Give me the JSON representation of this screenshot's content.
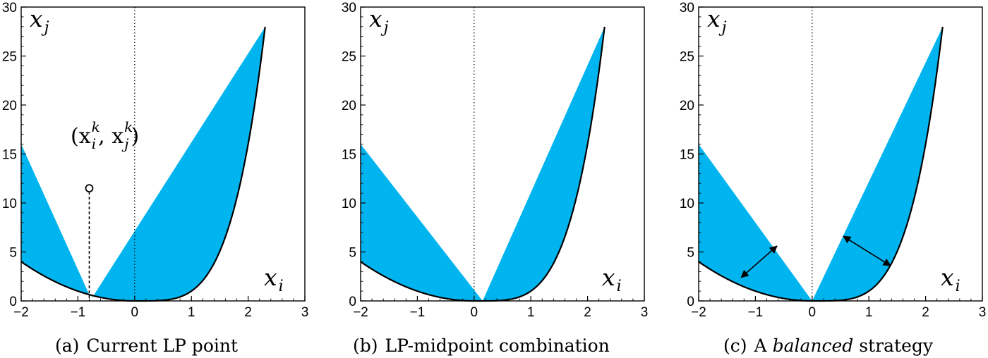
{
  "fill_color": "#00b4ef",
  "chart_data": [
    {
      "type": "area",
      "caption": {
        "label": "(a)",
        "text": "Current LP point",
        "emphasis": "",
        "rest": ""
      },
      "xlabel": {
        "base": "x",
        "sub": "i"
      },
      "ylabel": {
        "base": "x",
        "sub": "j"
      },
      "xlim": [
        -2,
        3
      ],
      "ylim": [
        0,
        30
      ],
      "xticks": [
        -2,
        -1,
        0,
        1,
        2,
        3
      ],
      "yticks": [
        0,
        5,
        10,
        15,
        20,
        25,
        30
      ],
      "curve": "y = x^2 for x < 0; y = x^4 for x >= 0",
      "curve_range": [
        -2,
        2.3
      ],
      "regions": [
        {
          "from": [
            -2,
            16
          ],
          "to": [
            -0.8,
            0.64
          ]
        },
        {
          "from": [
            -0.75,
            0.3164
          ],
          "to": [
            2.3,
            27.98
          ]
        }
      ],
      "point": {
        "x": -0.8,
        "y": 11.5,
        "label_base": "(x",
        "label_sup1": "k",
        "label_sub1": "i",
        "label_sep": ", x",
        "label_sup2": "k",
        "label_sub2": "j",
        "label_close": ")"
      },
      "zero_line": true
    },
    {
      "type": "area",
      "caption": {
        "label": "(b)",
        "text": "LP-midpoint combination",
        "emphasis": "",
        "rest": ""
      },
      "xlabel": {
        "base": "x",
        "sub": "i"
      },
      "ylabel": {
        "base": "x",
        "sub": "j"
      },
      "xlim": [
        -2,
        3
      ],
      "ylim": [
        0,
        30
      ],
      "xticks": [
        -2,
        -1,
        0,
        1,
        2,
        3
      ],
      "yticks": [
        0,
        5,
        10,
        15,
        20,
        25,
        30
      ],
      "curve": "y = x^2 for x < 0; y = x^4 for x >= 0",
      "curve_range": [
        -2,
        2.3
      ],
      "regions": [
        {
          "from": [
            -2,
            16
          ],
          "to": [
            0.15,
            0.0005
          ]
        },
        {
          "from": [
            0.15,
            0.0005
          ],
          "to": [
            2.3,
            27.98
          ]
        }
      ],
      "zero_line": true
    },
    {
      "type": "area",
      "caption": {
        "label": "(c)",
        "text": "A",
        "emphasis": "balanced",
        "rest": "strategy"
      },
      "xlabel": {
        "base": "x",
        "sub": "i"
      },
      "ylabel": {
        "base": "x",
        "sub": "j"
      },
      "xlim": [
        -2,
        3
      ],
      "ylim": [
        0,
        30
      ],
      "xticks": [
        -2,
        -1,
        0,
        1,
        2,
        3
      ],
      "yticks": [
        0,
        5,
        10,
        15,
        20,
        25,
        30
      ],
      "curve": "y = x^2 for x < 0; y = x^4 for x >= 0",
      "curve_range": [
        -2,
        2.3
      ],
      "regions": [
        {
          "from": [
            -2,
            16
          ],
          "to": [
            0,
            0
          ]
        },
        {
          "from": [
            0,
            0
          ],
          "to": [
            2.3,
            27.98
          ]
        }
      ],
      "arrows": [
        {
          "from": [
            -1.25,
            2.4
          ],
          "to": [
            -0.62,
            5.6
          ]
        },
        {
          "from": [
            0.55,
            6.6
          ],
          "to": [
            1.38,
            3.6
          ]
        }
      ],
      "zero_line": true
    }
  ]
}
